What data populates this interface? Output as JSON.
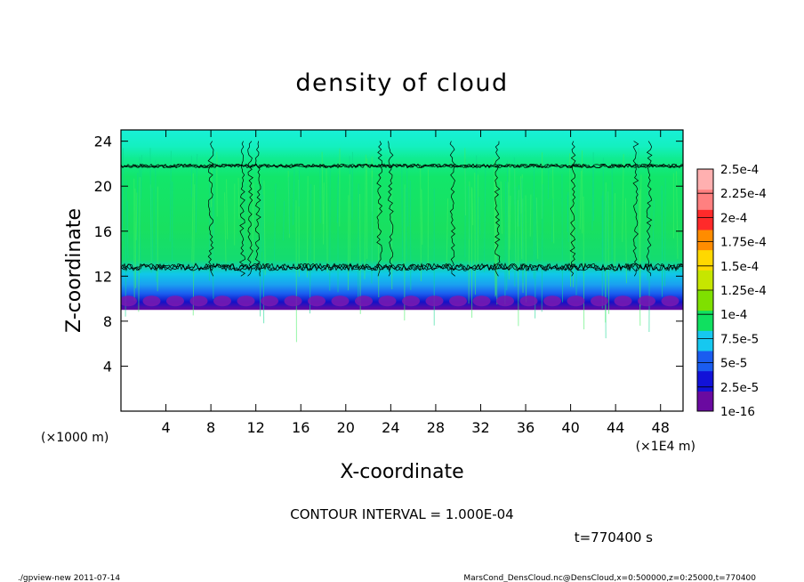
{
  "chart_data": {
    "type": "heatmap",
    "title": "density of cloud",
    "xlabel": "X-coordinate",
    "ylabel": "Z-coordinate",
    "x_unit_left": "(×1000 m)",
    "x_unit_right": "(×1E4 m)",
    "xlim": [
      0,
      50
    ],
    "ylim": [
      0,
      25
    ],
    "x_ticks": [
      4,
      8,
      12,
      16,
      20,
      24,
      28,
      32,
      36,
      40,
      44,
      48
    ],
    "y_ticks": [
      4,
      8,
      12,
      16,
      20,
      24
    ],
    "cloud_base_z": 9.0,
    "cloud_top_z": 25,
    "contour_bands_z": [
      12.8,
      21.8
    ],
    "colorbar": {
      "labels": [
        "1e-16",
        "2.5e-5",
        "5e-5",
        "7.5e-5",
        "1e-4",
        "1.25e-4",
        "1.5e-4",
        "1.75e-4",
        "2e-4",
        "2.25e-4",
        "2.5e-4"
      ],
      "colors": [
        "#6a0aa0",
        "#1212d8",
        "#1a5cf0",
        "#16c8f0",
        "#10e060",
        "#7fe000",
        "#c6e600",
        "#ffd800",
        "#ff8c00",
        "#ff2a2a",
        "#ff8080",
        "#ffb0b0"
      ]
    },
    "contour_interval_text": "CONTOUR INTERVAL = 1.000E-04",
    "time_text": "t=770400 s"
  },
  "footer": {
    "left": "./gpview-new  2011-07-14",
    "right": "MarsCond_DensCloud.nc@DensCloud,x=0:500000,z=0:25000,t=770400"
  }
}
